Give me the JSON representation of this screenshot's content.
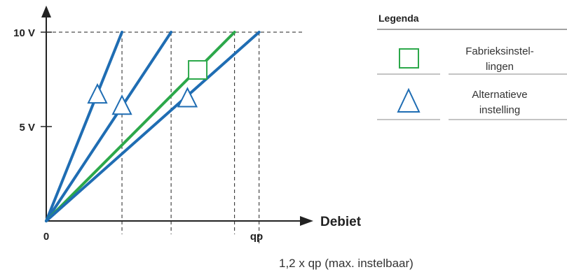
{
  "chart_data": {
    "type": "line",
    "xlabel": "Debiet",
    "x_ticks": [
      "0",
      "qp"
    ],
    "y_ticks": [
      "5 V",
      "10 V"
    ],
    "xlim": [
      0,
      1.23
    ],
    "ylim": [
      0,
      11.3
    ],
    "annotation": "1,2 x qp (max. instelbaar)",
    "series": [
      {
        "kind": "alternative",
        "color": "#1f6db3",
        "x": [
          0,
          0.37
        ],
        "y": [
          0,
          10
        ]
      },
      {
        "kind": "alternative",
        "color": "#1f6db3",
        "x": [
          0,
          0.61
        ],
        "y": [
          0,
          10
        ]
      },
      {
        "kind": "factory",
        "color": "#2ca84a",
        "x": [
          0,
          0.92
        ],
        "y": [
          0,
          10
        ]
      },
      {
        "kind": "alternative",
        "color": "#1f6db3",
        "x": [
          0,
          1.04
        ],
        "y": [
          0,
          10
        ]
      }
    ],
    "markers": [
      {
        "shape": "triangle",
        "color": "#1f6db3",
        "x": 0.25,
        "y": 6.7
      },
      {
        "shape": "triangle",
        "color": "#1f6db3",
        "x": 0.37,
        "y": 6.1
      },
      {
        "shape": "square",
        "color": "#2ca84a",
        "x": 0.74,
        "y": 8.0
      },
      {
        "shape": "triangle",
        "color": "#1f6db3",
        "x": 0.69,
        "y": 6.5
      }
    ],
    "guides": {
      "x": [
        0.37,
        0.61,
        0.92,
        1.04
      ],
      "y": 10
    }
  },
  "legend": {
    "title": "Legenda",
    "items": [
      {
        "symbol": "square",
        "color": "#2ca84a",
        "label_line1": "Fabrieksinstel-",
        "label_line2": "lingen"
      },
      {
        "symbol": "triangle",
        "color": "#1f6db3",
        "label_line1": "Alternatieve",
        "label_line2": "instelling"
      }
    ]
  }
}
